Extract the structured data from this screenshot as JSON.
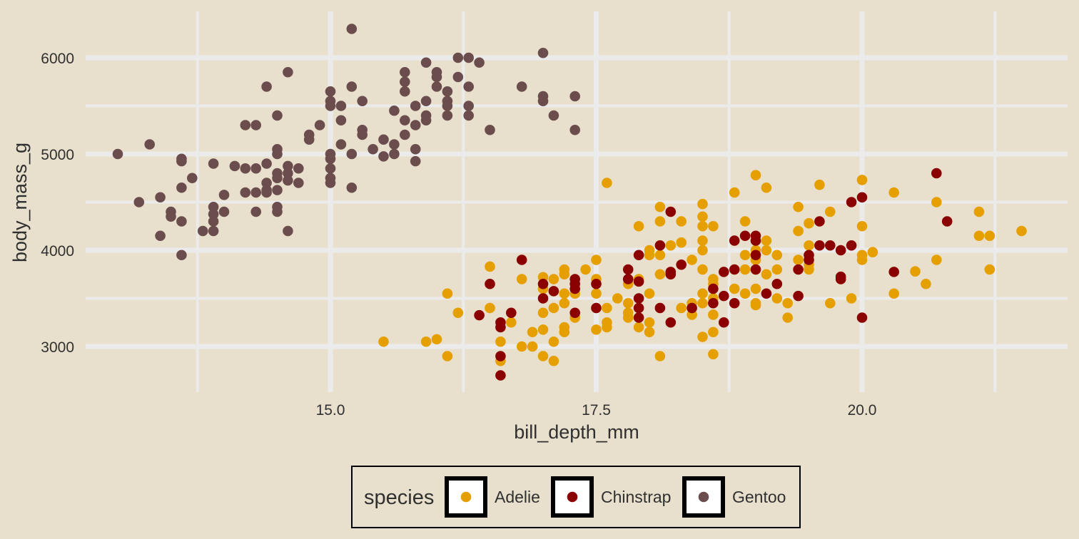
{
  "chart_data": {
    "type": "scatter",
    "title": "",
    "xlabel": "bill_depth_mm",
    "ylabel": "body_mass_g",
    "xlim": [
      13.0,
      21.6
    ],
    "ylim": [
      2600,
      6350
    ],
    "x_ticks": [
      15.0,
      17.5,
      20.0
    ],
    "x_tick_labels": [
      "15.0",
      "17.5",
      "20.0"
    ],
    "y_ticks": [
      3000,
      4000,
      5000,
      6000
    ],
    "y_tick_labels": [
      "3000",
      "4000",
      "5000",
      "6000"
    ],
    "grid": true,
    "legend": {
      "title": "species",
      "position": "bottom"
    },
    "series": [
      {
        "name": "Adelie",
        "color": "#E69F00",
        "points": [
          [
            17.6,
            4700
          ],
          [
            19.0,
            4780
          ],
          [
            18.8,
            4600
          ],
          [
            19.1,
            4650
          ],
          [
            20.3,
            4600
          ],
          [
            20.0,
            4730
          ],
          [
            19.6,
            4680
          ],
          [
            20.7,
            4500
          ],
          [
            19.4,
            4450
          ],
          [
            19.5,
            4280
          ],
          [
            19.7,
            4400
          ],
          [
            21.1,
            4400
          ],
          [
            21.2,
            4150
          ],
          [
            21.1,
            4150
          ],
          [
            21.5,
            4200
          ],
          [
            21.2,
            3800
          ],
          [
            20.7,
            3900
          ],
          [
            20.5,
            3780
          ],
          [
            20.6,
            3650
          ],
          [
            20.3,
            3550
          ],
          [
            20.0,
            4250
          ],
          [
            20.0,
            3950
          ],
          [
            20.1,
            3980
          ],
          [
            20.0,
            3900
          ],
          [
            19.9,
            3500
          ],
          [
            19.7,
            3450
          ],
          [
            19.4,
            3900
          ],
          [
            19.4,
            4200
          ],
          [
            19.5,
            4050
          ],
          [
            19.5,
            3800
          ],
          [
            19.5,
            3850
          ],
          [
            19.3,
            3450
          ],
          [
            19.3,
            3300
          ],
          [
            19.2,
            3500
          ],
          [
            19.2,
            3800
          ],
          [
            19.2,
            3950
          ],
          [
            19.1,
            4100
          ],
          [
            19.1,
            4000
          ],
          [
            19.1,
            3750
          ],
          [
            19.0,
            4000
          ],
          [
            19.0,
            3900
          ],
          [
            19.0,
            3800
          ],
          [
            19.0,
            3600
          ],
          [
            19.0,
            3450
          ],
          [
            19.0,
            3430
          ],
          [
            18.9,
            4300
          ],
          [
            18.9,
            3950
          ],
          [
            18.9,
            3800
          ],
          [
            18.9,
            3550
          ],
          [
            18.8,
            3600
          ],
          [
            18.6,
            4250
          ],
          [
            18.6,
            3700
          ],
          [
            18.6,
            3650
          ],
          [
            18.6,
            3500
          ],
          [
            18.6,
            3330
          ],
          [
            18.6,
            3150
          ],
          [
            18.6,
            2920
          ],
          [
            18.5,
            4480
          ],
          [
            18.5,
            4350
          ],
          [
            18.5,
            4250
          ],
          [
            18.5,
            4100
          ],
          [
            18.5,
            4000
          ],
          [
            18.5,
            3800
          ],
          [
            18.5,
            3550
          ],
          [
            18.5,
            3450
          ],
          [
            18.5,
            3100
          ],
          [
            18.4,
            3450
          ],
          [
            18.4,
            3330
          ],
          [
            18.4,
            3900
          ],
          [
            18.3,
            4300
          ],
          [
            18.3,
            4080
          ],
          [
            18.3,
            3400
          ],
          [
            18.2,
            4050
          ],
          [
            18.1,
            4450
          ],
          [
            18.1,
            4300
          ],
          [
            18.1,
            3950
          ],
          [
            18.1,
            3750
          ],
          [
            18.1,
            2900
          ],
          [
            18.0,
            4000
          ],
          [
            18.0,
            3950
          ],
          [
            18.0,
            3550
          ],
          [
            18.0,
            3250
          ],
          [
            18.0,
            3150
          ],
          [
            17.9,
            4250
          ],
          [
            17.9,
            3700
          ],
          [
            17.9,
            3200
          ],
          [
            17.8,
            3650
          ],
          [
            17.8,
            3450
          ],
          [
            17.8,
            3350
          ],
          [
            17.8,
            3300
          ],
          [
            17.7,
            3500
          ],
          [
            17.6,
            3400
          ],
          [
            17.6,
            3250
          ],
          [
            17.6,
            3200
          ],
          [
            17.5,
            3900
          ],
          [
            17.5,
            3700
          ],
          [
            17.5,
            3550
          ],
          [
            17.5,
            3175
          ],
          [
            17.4,
            3800
          ],
          [
            17.3,
            3550
          ],
          [
            17.3,
            3300
          ],
          [
            17.2,
            3800
          ],
          [
            17.2,
            3750
          ],
          [
            17.2,
            3550
          ],
          [
            17.2,
            3450
          ],
          [
            17.2,
            3200
          ],
          [
            17.2,
            3150
          ],
          [
            17.1,
            3700
          ],
          [
            17.1,
            3400
          ],
          [
            17.1,
            3050
          ],
          [
            17.1,
            2850
          ],
          [
            17.0,
            3720
          ],
          [
            17.0,
            3600
          ],
          [
            17.0,
            3350
          ],
          [
            17.0,
            3175
          ],
          [
            17.0,
            2900
          ],
          [
            16.9,
            3150
          ],
          [
            16.9,
            3000
          ],
          [
            16.8,
            3700
          ],
          [
            16.8,
            3000
          ],
          [
            16.7,
            3250
          ],
          [
            16.6,
            3050
          ],
          [
            16.6,
            2850
          ],
          [
            16.5,
            3830
          ],
          [
            16.5,
            3400
          ],
          [
            16.2,
            3350
          ],
          [
            16.1,
            3550
          ],
          [
            16.1,
            2900
          ],
          [
            16.0,
            3075
          ],
          [
            15.9,
            3050
          ],
          [
            15.5,
            3050
          ]
        ]
      },
      {
        "name": "Chinstrap",
        "color": "#8B0000",
        "points": [
          [
            20.7,
            4800
          ],
          [
            20.0,
            4550
          ],
          [
            19.9,
            4500
          ],
          [
            20.8,
            4300
          ],
          [
            19.6,
            4300
          ],
          [
            20.3,
            3775
          ],
          [
            20.0,
            3300
          ],
          [
            19.8,
            3700
          ],
          [
            19.8,
            3725
          ],
          [
            19.8,
            4000
          ],
          [
            19.9,
            4050
          ],
          [
            19.7,
            4050
          ],
          [
            19.6,
            4050
          ],
          [
            19.5,
            3950
          ],
          [
            19.5,
            3900
          ],
          [
            19.4,
            3800
          ],
          [
            19.4,
            3525
          ],
          [
            19.2,
            3650
          ],
          [
            19.1,
            3550
          ],
          [
            19.0,
            4150
          ],
          [
            19.0,
            4100
          ],
          [
            19.0,
            3950
          ],
          [
            19.0,
            3800
          ],
          [
            18.9,
            4150
          ],
          [
            18.8,
            4100
          ],
          [
            18.8,
            3800
          ],
          [
            18.8,
            3450
          ],
          [
            18.7,
            3775
          ],
          [
            18.7,
            3525
          ],
          [
            18.7,
            3250
          ],
          [
            18.6,
            3600
          ],
          [
            18.6,
            3450
          ],
          [
            18.4,
            3400
          ],
          [
            18.3,
            3850
          ],
          [
            18.2,
            4400
          ],
          [
            18.2,
            3775
          ],
          [
            18.2,
            3750
          ],
          [
            18.2,
            3250
          ],
          [
            18.1,
            4050
          ],
          [
            18.1,
            3400
          ],
          [
            17.9,
            3950
          ],
          [
            17.9,
            3500
          ],
          [
            17.9,
            3675
          ],
          [
            17.9,
            3400
          ],
          [
            17.9,
            3300
          ],
          [
            17.8,
            3800
          ],
          [
            17.8,
            3700
          ],
          [
            17.5,
            3650
          ],
          [
            17.5,
            3400
          ],
          [
            17.3,
            3700
          ],
          [
            17.3,
            3650
          ],
          [
            17.3,
            3600
          ],
          [
            17.3,
            3350
          ],
          [
            17.1,
            3575
          ],
          [
            17.0,
            3650
          ],
          [
            17.0,
            3500
          ],
          [
            16.8,
            3900
          ],
          [
            16.7,
            3350
          ],
          [
            16.6,
            3250
          ],
          [
            16.6,
            3200
          ],
          [
            16.6,
            2900
          ],
          [
            16.6,
            2700
          ],
          [
            16.5,
            3650
          ],
          [
            16.4,
            3325
          ]
        ]
      },
      {
        "name": "Gentoo",
        "color": "#6B4D4D",
        "points": [
          [
            15.2,
            6300
          ],
          [
            17.0,
            6050
          ],
          [
            16.3,
            6000
          ],
          [
            16.2,
            6000
          ],
          [
            16.4,
            5950
          ],
          [
            15.9,
            5950
          ],
          [
            16.0,
            5850
          ],
          [
            15.7,
            5850
          ],
          [
            14.6,
            5850
          ],
          [
            16.0,
            5800
          ],
          [
            16.2,
            5800
          ],
          [
            15.7,
            5750
          ],
          [
            16.8,
            5700
          ],
          [
            15.2,
            5700
          ],
          [
            16.0,
            5700
          ],
          [
            16.3,
            5700
          ],
          [
            14.4,
            5700
          ],
          [
            15.7,
            5650
          ],
          [
            16.1,
            5650
          ],
          [
            15.0,
            5650
          ],
          [
            17.0,
            5600
          ],
          [
            17.3,
            5600
          ],
          [
            17.0,
            5550
          ],
          [
            16.1,
            5550
          ],
          [
            15.9,
            5550
          ],
          [
            15.3,
            5550
          ],
          [
            15.0,
            5550
          ],
          [
            15.1,
            5500
          ],
          [
            15.8,
            5500
          ],
          [
            16.1,
            5500
          ],
          [
            16.3,
            5500
          ],
          [
            15.0,
            5500
          ],
          [
            15.6,
            5450
          ],
          [
            17.1,
            5400
          ],
          [
            16.3,
            5400
          ],
          [
            15.9,
            5400
          ],
          [
            16.1,
            5400
          ],
          [
            14.5,
            5400
          ],
          [
            15.7,
            5350
          ],
          [
            15.9,
            5350
          ],
          [
            15.1,
            5350
          ],
          [
            14.3,
            5300
          ],
          [
            14.2,
            5300
          ],
          [
            15.8,
            5300
          ],
          [
            14.9,
            5300
          ],
          [
            16.5,
            5250
          ],
          [
            17.3,
            5250
          ],
          [
            15.3,
            5250
          ],
          [
            14.8,
            5200
          ],
          [
            15.3,
            5200
          ],
          [
            15.7,
            5200
          ],
          [
            14.8,
            5150
          ],
          [
            15.5,
            5150
          ],
          [
            13.3,
            5100
          ],
          [
            15.1,
            5100
          ],
          [
            15.6,
            5100
          ],
          [
            15.8,
            5050
          ],
          [
            14.5,
            5050
          ],
          [
            15.4,
            5050
          ],
          [
            15.5,
            4975
          ],
          [
            15.6,
            5000
          ],
          [
            15.0,
            5000
          ],
          [
            15.2,
            5000
          ],
          [
            14.5,
            5000
          ],
          [
            13.0,
            5000
          ],
          [
            15.0,
            4950
          ],
          [
            13.6,
            4950
          ],
          [
            13.6,
            4925
          ],
          [
            15.8,
            4925
          ],
          [
            14.1,
            4875
          ],
          [
            13.9,
            4900
          ],
          [
            14.4,
            4900
          ],
          [
            14.2,
            4850
          ],
          [
            14.3,
            4850
          ],
          [
            14.6,
            4875
          ],
          [
            14.5,
            4800
          ],
          [
            14.6,
            4800
          ],
          [
            14.7,
            4850
          ],
          [
            15.0,
            4850
          ],
          [
            14.5,
            4750
          ],
          [
            13.7,
            4750
          ],
          [
            14.6,
            4725
          ],
          [
            15.0,
            4750
          ],
          [
            15.0,
            4700
          ],
          [
            14.4,
            4700
          ],
          [
            14.7,
            4700
          ],
          [
            15.2,
            4650
          ],
          [
            13.6,
            4650
          ],
          [
            14.0,
            4575
          ],
          [
            14.3,
            4600
          ],
          [
            14.4,
            4600
          ],
          [
            14.5,
            4625
          ],
          [
            14.4,
            4625
          ],
          [
            14.2,
            4600
          ],
          [
            13.4,
            4550
          ],
          [
            13.2,
            4500
          ],
          [
            14.5,
            4450
          ],
          [
            14.5,
            4400
          ],
          [
            13.9,
            4450
          ],
          [
            14.3,
            4400
          ],
          [
            14.0,
            4400
          ],
          [
            13.5,
            4400
          ],
          [
            13.9,
            4375
          ],
          [
            13.6,
            4300
          ],
          [
            13.9,
            4300
          ],
          [
            13.5,
            4350
          ],
          [
            13.8,
            4200
          ],
          [
            13.9,
            4200
          ],
          [
            14.6,
            4200
          ],
          [
            13.4,
            4150
          ],
          [
            13.6,
            3950
          ]
        ]
      }
    ]
  }
}
